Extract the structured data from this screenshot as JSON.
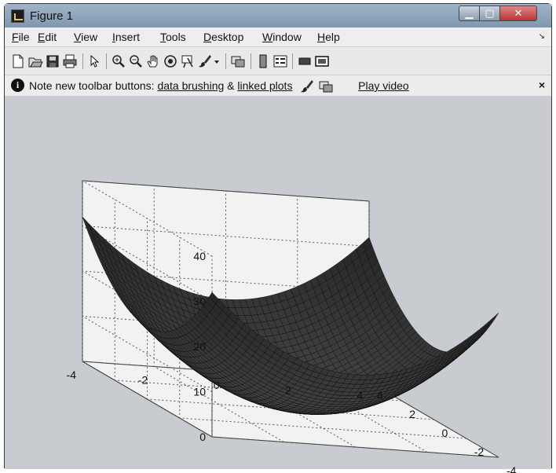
{
  "window": {
    "title": "Figure 1",
    "minimize": "▁",
    "maximize": "▢",
    "close": "✕"
  },
  "menu": [
    "File",
    "Edit",
    "View",
    "Insert",
    "Tools",
    "Desktop",
    "Window",
    "Help"
  ],
  "menu_corner": "↘",
  "toolbar_icons": [
    "new-figure-icon",
    "open-file-icon",
    "save-icon",
    "print-icon",
    "edit-plot-arrow-icon",
    "zoom-in-icon",
    "zoom-out-icon",
    "pan-hand-icon",
    "rotate-3d-icon",
    "data-cursor-icon",
    "brush-icon",
    "brush-dropdown-icon",
    "link-plot-icon",
    "colorbar-icon",
    "legend-icon",
    "hide-plot-tools-icon",
    "show-plot-tools-icon"
  ],
  "infobar": {
    "lead": "Note new toolbar buttons: ",
    "link1": "data brushing",
    "amp": " & ",
    "link2": "linked plots",
    "video": "Play video",
    "close": "×"
  },
  "chart_data": {
    "type": "surface",
    "title": "",
    "function": "z = x^2 + y^2",
    "x_range": [
      -4,
      4
    ],
    "y_range": [
      -4,
      4
    ],
    "z_range": [
      0,
      40
    ],
    "x_ticks": [
      -4,
      -2,
      0,
      2,
      4
    ],
    "y_ticks": [
      -4,
      -2,
      0,
      2,
      4
    ],
    "z_ticks": [
      0,
      10,
      20,
      30,
      40
    ],
    "grid": true,
    "colors": {
      "surface": "#2a2a2a",
      "mesh": "#0d0d0d",
      "axes_bg": "#f2f2f2",
      "grid": "#555555"
    }
  }
}
